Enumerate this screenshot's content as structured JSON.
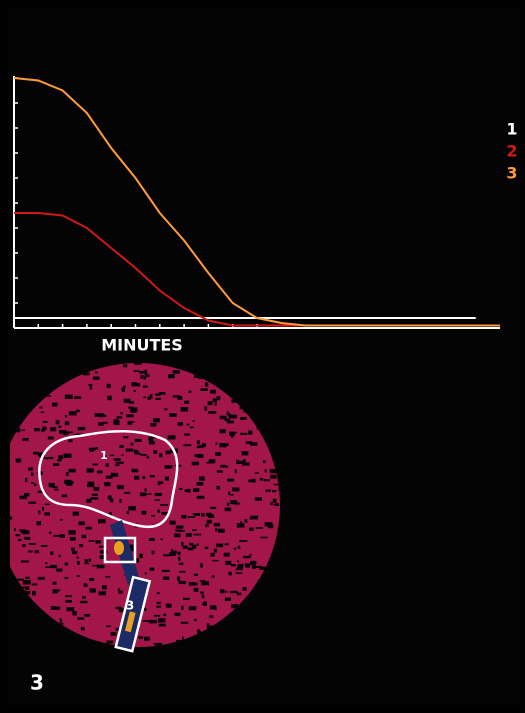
{
  "chart_data": {
    "type": "line",
    "x_label": "MINUTES",
    "x": [
      0,
      5,
      10,
      15,
      20,
      25,
      30,
      35,
      40,
      45,
      50,
      55,
      60,
      65,
      70,
      75,
      80,
      85,
      90,
      95,
      100
    ],
    "series": [
      {
        "name": "1",
        "color": "#ffffff",
        "values": [
          4,
          4,
          4,
          4,
          4,
          4,
          4,
          4,
          4,
          4,
          4,
          4,
          4,
          4,
          4,
          4,
          4,
          4,
          4,
          4,
          null
        ]
      },
      {
        "name": "2",
        "color": "#d01818",
        "values": [
          46,
          46,
          45,
          40,
          32,
          24,
          15,
          8,
          3,
          1,
          1,
          1,
          1,
          1,
          1,
          1,
          1,
          1,
          1,
          1,
          null
        ]
      },
      {
        "name": "3",
        "color": "#ff9a3c",
        "values": [
          100,
          99,
          95,
          86,
          72,
          60,
          46,
          35,
          22,
          10,
          4,
          2,
          1,
          1,
          1,
          1,
          1,
          1,
          1,
          1,
          1
        ]
      }
    ],
    "xlim": [
      0,
      100
    ],
    "ylim": [
      0,
      100
    ],
    "xticks": [
      0,
      5,
      10,
      15,
      20,
      25,
      30,
      35,
      40,
      45,
      50
    ],
    "yticks": [
      0,
      10,
      20,
      30,
      40,
      50,
      60,
      70,
      80,
      90,
      100
    ],
    "grid": false
  },
  "image": {
    "roi_labels": [
      "1",
      "3"
    ],
    "figure_label": "3"
  }
}
